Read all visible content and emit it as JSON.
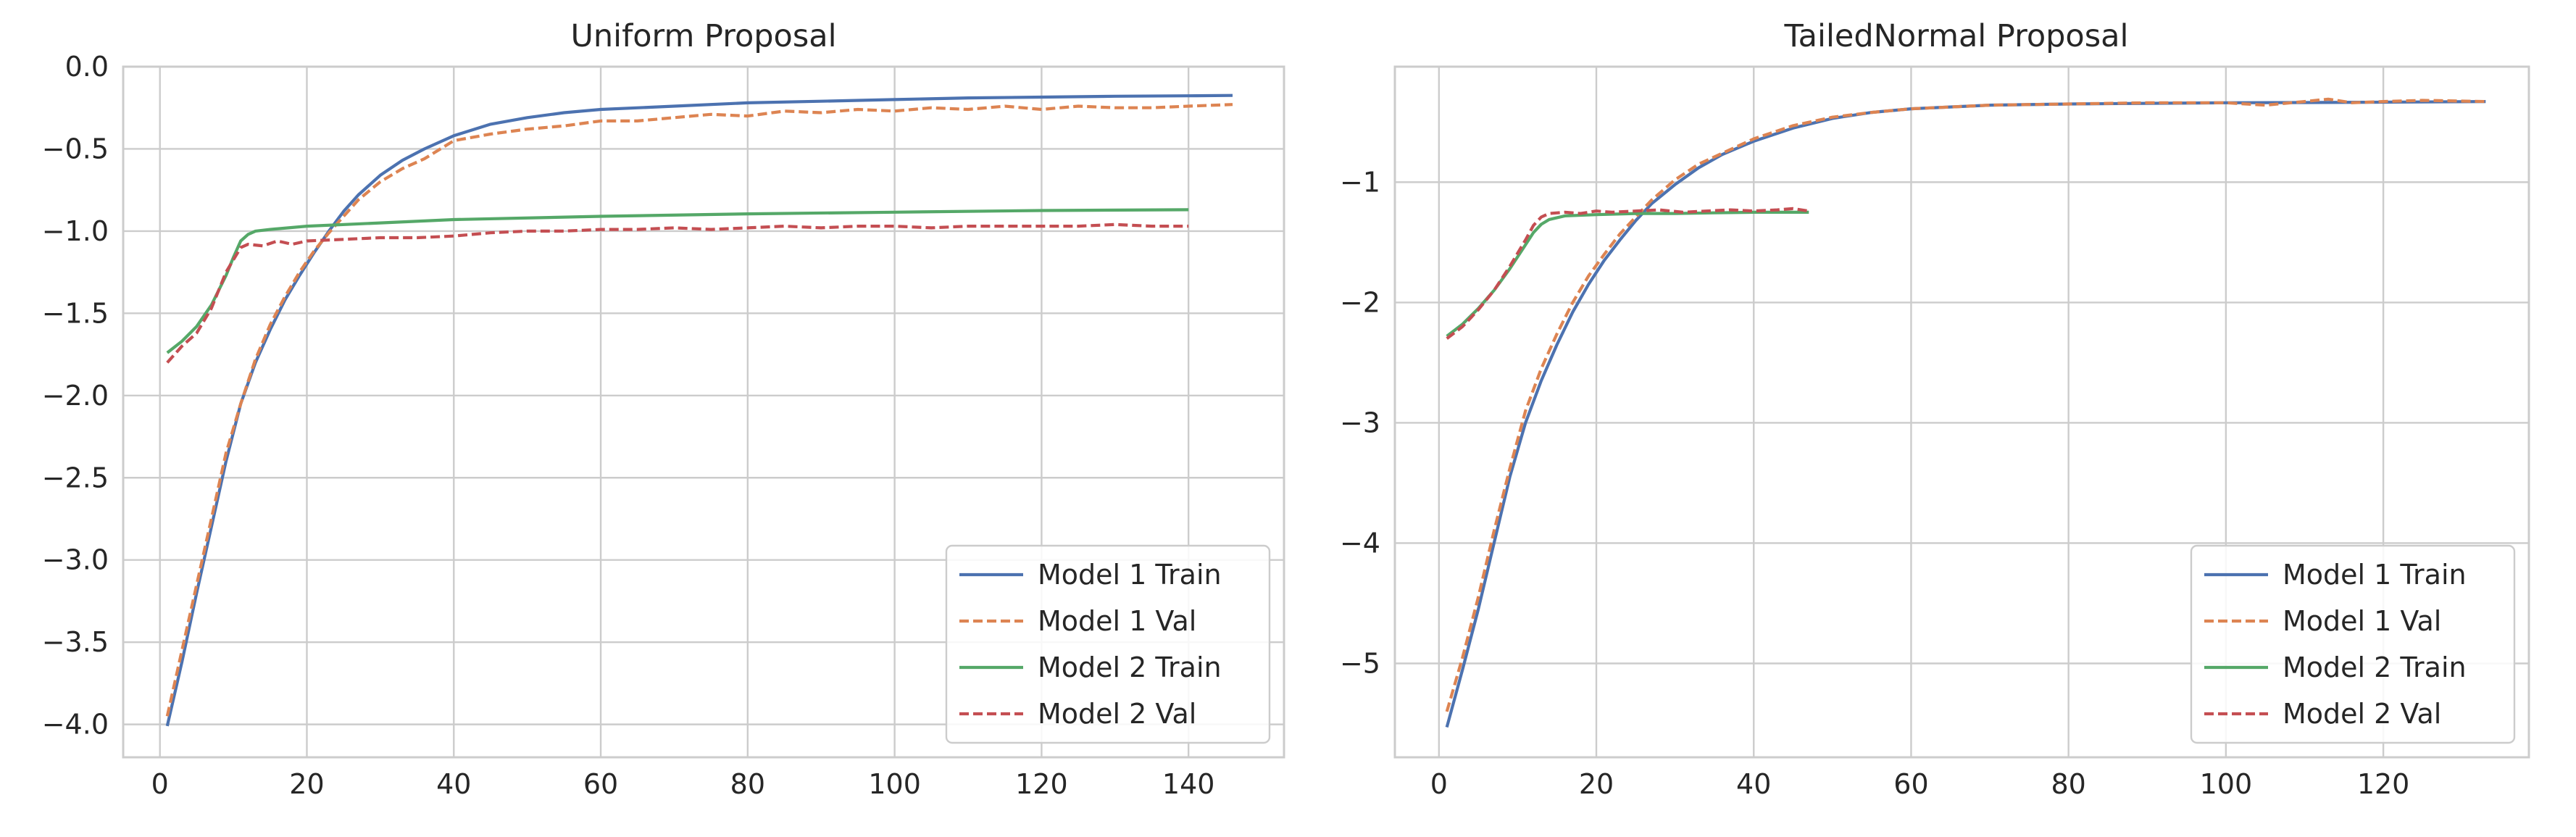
{
  "chart_data": [
    {
      "type": "line",
      "title": "Uniform Proposal",
      "xlabel": "",
      "ylabel": "",
      "xlim": [
        -5,
        153
      ],
      "ylim": [
        -4.2,
        0.0
      ],
      "xticks": [
        0,
        20,
        40,
        60,
        80,
        100,
        120,
        140
      ],
      "yticks": [
        0.0,
        -0.5,
        -1.0,
        -1.5,
        -2.0,
        -2.5,
        -3.0,
        -3.5,
        -4.0
      ],
      "ytick_labels": [
        "0.0",
        "−0.5",
        "−1.0",
        "−1.5",
        "−2.0",
        "−2.5",
        "−3.0",
        "−3.5",
        "−4.0"
      ],
      "grid": true,
      "legend_position": "lower-right",
      "series": [
        {
          "name": "Model 1 Train",
          "color": "#4c72b0",
          "dash": "solid",
          "x": [
            1,
            3,
            5,
            7,
            9,
            11,
            13,
            15,
            17,
            19,
            21,
            23,
            25,
            27,
            30,
            33,
            36,
            40,
            45,
            50,
            55,
            60,
            70,
            80,
            90,
            100,
            110,
            120,
            130,
            140,
            146
          ],
          "y": [
            -4.01,
            -3.62,
            -3.2,
            -2.8,
            -2.4,
            -2.05,
            -1.8,
            -1.6,
            -1.42,
            -1.27,
            -1.13,
            -1.0,
            -0.88,
            -0.78,
            -0.66,
            -0.57,
            -0.5,
            -0.42,
            -0.35,
            -0.31,
            -0.28,
            -0.26,
            -0.24,
            -0.22,
            -0.21,
            -0.2,
            -0.19,
            -0.185,
            -0.18,
            -0.177,
            -0.175
          ]
        },
        {
          "name": "Model 1 Val",
          "color": "#dd8452",
          "dash": "dashed",
          "x": [
            1,
            3,
            5,
            7,
            9,
            11,
            13,
            15,
            17,
            19,
            21,
            23,
            25,
            27,
            30,
            33,
            36,
            40,
            45,
            50,
            55,
            60,
            65,
            70,
            75,
            80,
            85,
            90,
            95,
            100,
            105,
            110,
            115,
            120,
            125,
            130,
            135,
            140,
            146
          ],
          "y": [
            -3.95,
            -3.55,
            -3.15,
            -2.75,
            -2.35,
            -2.05,
            -1.78,
            -1.57,
            -1.4,
            -1.25,
            -1.12,
            -1.01,
            -0.91,
            -0.81,
            -0.7,
            -0.62,
            -0.56,
            -0.45,
            -0.41,
            -0.38,
            -0.36,
            -0.33,
            -0.33,
            -0.31,
            -0.29,
            -0.3,
            -0.27,
            -0.28,
            -0.26,
            -0.27,
            -0.25,
            -0.26,
            -0.24,
            -0.26,
            -0.24,
            -0.25,
            -0.25,
            -0.24,
            -0.23
          ]
        },
        {
          "name": "Model 2 Train",
          "color": "#55a868",
          "dash": "solid",
          "x": [
            1,
            3,
            5,
            7,
            9,
            10,
            11,
            12,
            13,
            15,
            20,
            30,
            40,
            60,
            80,
            100,
            120,
            140
          ],
          "y": [
            -1.74,
            -1.67,
            -1.58,
            -1.45,
            -1.27,
            -1.16,
            -1.06,
            -1.02,
            -1.0,
            -0.99,
            -0.97,
            -0.95,
            -0.93,
            -0.91,
            -0.895,
            -0.885,
            -0.875,
            -0.87
          ]
        },
        {
          "name": "Model 2 Val",
          "color": "#c44e52",
          "dash": "dashed",
          "x": [
            1,
            3,
            5,
            7,
            9,
            11,
            12,
            14,
            16,
            18,
            20,
            25,
            30,
            35,
            40,
            45,
            50,
            55,
            60,
            65,
            70,
            75,
            80,
            85,
            90,
            95,
            100,
            105,
            110,
            115,
            120,
            125,
            130,
            135,
            140
          ],
          "y": [
            -1.8,
            -1.7,
            -1.62,
            -1.47,
            -1.25,
            -1.1,
            -1.08,
            -1.09,
            -1.06,
            -1.08,
            -1.06,
            -1.05,
            -1.04,
            -1.04,
            -1.03,
            -1.01,
            -1.0,
            -1.0,
            -0.99,
            -0.99,
            -0.98,
            -0.99,
            -0.98,
            -0.97,
            -0.98,
            -0.97,
            -0.97,
            -0.98,
            -0.97,
            -0.97,
            -0.97,
            -0.97,
            -0.96,
            -0.97,
            -0.97
          ]
        }
      ]
    },
    {
      "type": "line",
      "title": "TailedNormal Proposal",
      "xlabel": "",
      "ylabel": "",
      "xlim": [
        -5.6,
        138.5
      ],
      "ylim": [
        -5.78,
        -0.04
      ],
      "xticks": [
        0,
        20,
        40,
        60,
        80,
        100,
        120
      ],
      "yticks": [
        -1,
        -2,
        -3,
        -4,
        -5
      ],
      "ytick_labels": [
        "−1",
        "−2",
        "−3",
        "−4",
        "−5"
      ],
      "grid": true,
      "legend_position": "lower-right",
      "series": [
        {
          "name": "Model 1 Train",
          "color": "#4c72b0",
          "dash": "solid",
          "x": [
            1,
            3,
            5,
            7,
            9,
            11,
            13,
            15,
            17,
            19,
            21,
            23,
            25,
            27,
            30,
            33,
            36,
            40,
            45,
            50,
            55,
            60,
            70,
            80,
            90,
            100,
            110,
            120,
            133
          ],
          "y": [
            -5.53,
            -5.05,
            -4.55,
            -4.0,
            -3.45,
            -3.0,
            -2.65,
            -2.35,
            -2.08,
            -1.85,
            -1.65,
            -1.48,
            -1.32,
            -1.18,
            -1.02,
            -0.88,
            -0.77,
            -0.66,
            -0.55,
            -0.47,
            -0.42,
            -0.39,
            -0.36,
            -0.35,
            -0.345,
            -0.34,
            -0.338,
            -0.335,
            -0.33
          ]
        },
        {
          "name": "Model 1 Val",
          "color": "#dd8452",
          "dash": "dashed",
          "x": [
            1,
            3,
            5,
            7,
            9,
            11,
            13,
            15,
            17,
            19,
            21,
            23,
            25,
            27,
            30,
            33,
            36,
            40,
            45,
            50,
            55,
            60,
            70,
            80,
            90,
            100,
            105,
            110,
            113,
            116,
            120,
            125,
            133
          ],
          "y": [
            -5.4,
            -4.95,
            -4.45,
            -3.9,
            -3.38,
            -2.9,
            -2.55,
            -2.26,
            -2.0,
            -1.78,
            -1.6,
            -1.43,
            -1.29,
            -1.15,
            -0.98,
            -0.85,
            -0.76,
            -0.64,
            -0.53,
            -0.46,
            -0.42,
            -0.39,
            -0.36,
            -0.35,
            -0.34,
            -0.34,
            -0.36,
            -0.33,
            -0.31,
            -0.34,
            -0.33,
            -0.32,
            -0.33
          ]
        },
        {
          "name": "Model 2 Train",
          "color": "#55a868",
          "dash": "solid",
          "x": [
            1,
            3,
            5,
            7,
            9,
            11,
            12,
            13,
            14,
            16,
            20,
            25,
            30,
            35,
            40,
            47
          ],
          "y": [
            -2.28,
            -2.18,
            -2.05,
            -1.9,
            -1.72,
            -1.52,
            -1.42,
            -1.35,
            -1.31,
            -1.28,
            -1.27,
            -1.26,
            -1.26,
            -1.255,
            -1.25,
            -1.25
          ]
        },
        {
          "name": "Model 2 Val",
          "color": "#c44e52",
          "dash": "dashed",
          "x": [
            1,
            3,
            5,
            7,
            9,
            11,
            12,
            13,
            14,
            16,
            18,
            20,
            22,
            25,
            28,
            31,
            34,
            37,
            40,
            43,
            45,
            47
          ],
          "y": [
            -2.3,
            -2.2,
            -2.06,
            -1.9,
            -1.7,
            -1.48,
            -1.36,
            -1.29,
            -1.26,
            -1.25,
            -1.26,
            -1.24,
            -1.25,
            -1.24,
            -1.23,
            -1.25,
            -1.24,
            -1.23,
            -1.24,
            -1.23,
            -1.22,
            -1.24
          ]
        }
      ]
    }
  ]
}
